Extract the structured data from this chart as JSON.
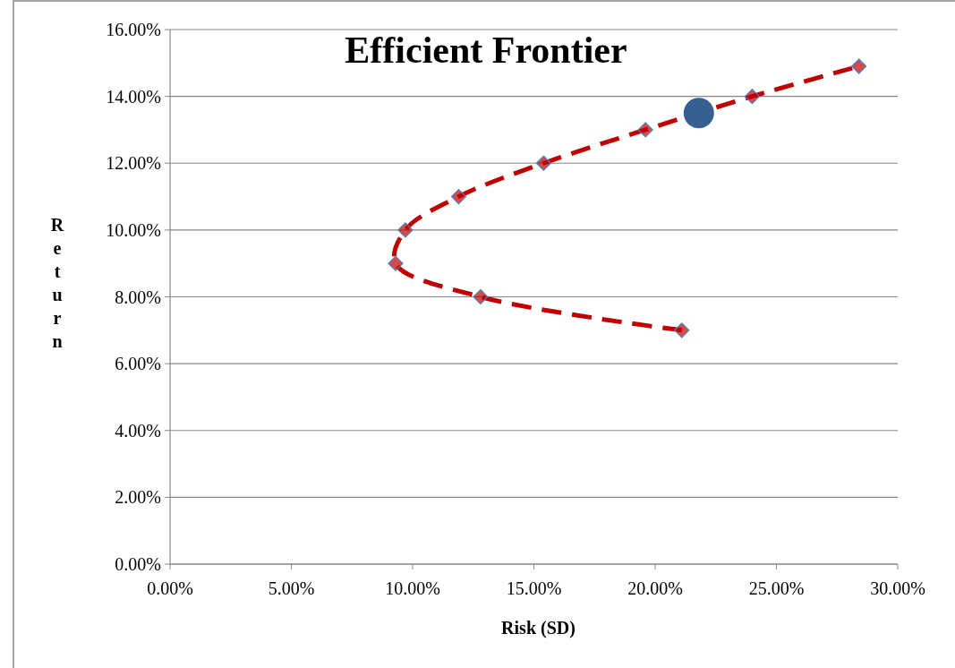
{
  "chart_data": {
    "type": "line",
    "title": "Efficient Frontier",
    "xlabel": "Risk (SD)",
    "ylabel": "Return",
    "xlim": [
      0,
      30
    ],
    "ylim": [
      0,
      16
    ],
    "xticks": [
      {
        "value": 0,
        "label": "0.00%"
      },
      {
        "value": 5,
        "label": "5.00%"
      },
      {
        "value": 10,
        "label": "10.00%"
      },
      {
        "value": 15,
        "label": "15.00%"
      },
      {
        "value": 20,
        "label": "20.00%"
      },
      {
        "value": 25,
        "label": "25.00%"
      },
      {
        "value": 30,
        "label": "30.00%"
      }
    ],
    "yticks": [
      {
        "value": 0,
        "label": "0.00%"
      },
      {
        "value": 2,
        "label": "2.00%"
      },
      {
        "value": 4,
        "label": "4.00%"
      },
      {
        "value": 6,
        "label": "6.00%"
      },
      {
        "value": 8,
        "label": "8.00%"
      },
      {
        "value": 10,
        "label": "10.00%"
      },
      {
        "value": 12,
        "label": "12.00%"
      },
      {
        "value": 14,
        "label": "14.00%"
      },
      {
        "value": 16,
        "label": "16.00%"
      }
    ],
    "grid": "y",
    "series": [
      {
        "color": "#c00000",
        "line_style": "dashed",
        "marker": "diamond",
        "x": [
          21.1,
          12.8,
          9.3,
          9.7,
          11.9,
          15.4,
          19.6,
          24.0,
          28.4
        ],
        "values": [
          7,
          8,
          9,
          10,
          11,
          12,
          13,
          14,
          14.9
        ]
      },
      {
        "type": "scatter",
        "color": "#376092",
        "marker": "circle",
        "x": [
          21.8
        ],
        "values": [
          13.5
        ]
      }
    ]
  }
}
